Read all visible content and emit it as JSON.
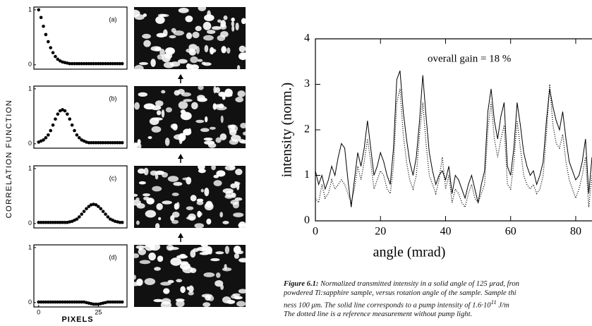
{
  "chart_data": [
    {
      "type": "scatter",
      "title": "(a)",
      "color": "#000000",
      "xlim": [
        -2,
        37
      ],
      "ylim": [
        -0.08,
        1.05
      ],
      "yticks": [
        0,
        1
      ],
      "xticks": [],
      "x": [
        0,
        1,
        2,
        3,
        4,
        5,
        6,
        7,
        8,
        9,
        10,
        11,
        12,
        13,
        14,
        15,
        16,
        17,
        18,
        19,
        20,
        21,
        22,
        23,
        24,
        25,
        26,
        27,
        28,
        29,
        30,
        31,
        32,
        33,
        34,
        35
      ],
      "values": [
        1,
        0.86,
        0.7,
        0.55,
        0.42,
        0.31,
        0.22,
        0.15,
        0.1,
        0.07,
        0.05,
        0.04,
        0.03,
        0.02,
        0.02,
        0.02,
        0.02,
        0.02,
        0.02,
        0.02,
        0.02,
        0.02,
        0.02,
        0.02,
        0.02,
        0.02,
        0.02,
        0.02,
        0.02,
        0.02,
        0.02,
        0.02,
        0.02,
        0.02,
        0.02,
        0.02
      ]
    },
    {
      "type": "scatter",
      "title": "(b)",
      "color": "#000000",
      "xlim": [
        -2,
        37
      ],
      "ylim": [
        -0.08,
        1.05
      ],
      "yticks": [
        0,
        1
      ],
      "xticks": [],
      "x": [
        0,
        1,
        2,
        3,
        4,
        5,
        6,
        7,
        8,
        9,
        10,
        11,
        12,
        13,
        14,
        15,
        16,
        17,
        18,
        19,
        20,
        21,
        22,
        23,
        24,
        25,
        26,
        27,
        28,
        29,
        30,
        31,
        32,
        33,
        34,
        35
      ],
      "values": [
        0.03,
        0.05,
        0.07,
        0.11,
        0.16,
        0.24,
        0.34,
        0.45,
        0.54,
        0.6,
        0.62,
        0.6,
        0.54,
        0.45,
        0.34,
        0.24,
        0.16,
        0.11,
        0.07,
        0.05,
        0.03,
        0.02,
        0.02,
        0.02,
        0.02,
        0.02,
        0.02,
        0.02,
        0.02,
        0.02,
        0.02,
        0.02,
        0.02,
        0.02,
        0.02,
        0.02
      ]
    },
    {
      "type": "scatter",
      "title": "(c)",
      "color": "#000000",
      "xlim": [
        -2,
        37
      ],
      "ylim": [
        -0.08,
        1.05
      ],
      "yticks": [
        0,
        1
      ],
      "xticks": [],
      "x": [
        0,
        1,
        2,
        3,
        4,
        5,
        6,
        7,
        8,
        9,
        10,
        11,
        12,
        13,
        14,
        15,
        16,
        17,
        18,
        19,
        20,
        21,
        22,
        23,
        24,
        25,
        26,
        27,
        28,
        29,
        30,
        31,
        32,
        33,
        34,
        35
      ],
      "values": [
        0.02,
        0.02,
        0.02,
        0.02,
        0.02,
        0.02,
        0.02,
        0.02,
        0.02,
        0.02,
        0.02,
        0.02,
        0.02,
        0.03,
        0.04,
        0.06,
        0.08,
        0.12,
        0.17,
        0.22,
        0.27,
        0.31,
        0.34,
        0.35,
        0.34,
        0.31,
        0.27,
        0.22,
        0.17,
        0.12,
        0.08,
        0.06,
        0.04,
        0.03,
        0.02,
        0.02
      ]
    },
    {
      "type": "scatter",
      "title": "(d)",
      "color": "#000000",
      "xlim": [
        -2,
        37
      ],
      "ylim": [
        -0.08,
        1.05
      ],
      "yticks": [
        0,
        1
      ],
      "xticks": [
        0,
        25
      ],
      "x": [
        0,
        1,
        2,
        3,
        4,
        5,
        6,
        7,
        8,
        9,
        10,
        11,
        12,
        13,
        14,
        15,
        16,
        17,
        18,
        19,
        20,
        21,
        22,
        23,
        24,
        25,
        26,
        27,
        28,
        29,
        30,
        31,
        32,
        33,
        34,
        35
      ],
      "values": [
        0.01,
        0.01,
        0.01,
        0.01,
        0.01,
        0.01,
        0.01,
        0.01,
        0.01,
        0.01,
        0.01,
        0.01,
        0.01,
        0.01,
        0.01,
        0.01,
        0.01,
        0.01,
        0.01,
        0.01,
        0,
        -0.01,
        -0.02,
        -0.03,
        -0.03,
        -0.03,
        -0.02,
        -0.01,
        0,
        0.01,
        0.01,
        0.01,
        0.01,
        0.01,
        0.01,
        0.01
      ]
    },
    {
      "type": "line",
      "xlabel": "angle (mrad)",
      "ylabel": "intensity (norm.)",
      "annotation": "overall gain = 18 %",
      "xlim": [
        0,
        85
      ],
      "ylim": [
        0,
        4
      ],
      "xticks": [
        0,
        20,
        40,
        60,
        80
      ],
      "yticks": [
        0,
        1,
        2,
        3,
        4
      ],
      "x": [
        0,
        1,
        2,
        3,
        4,
        5,
        6,
        7,
        8,
        9,
        10,
        11,
        12,
        13,
        14,
        15,
        16,
        17,
        18,
        19,
        20,
        21,
        22,
        23,
        24,
        25,
        26,
        27,
        28,
        29,
        30,
        31,
        32,
        33,
        34,
        35,
        36,
        37,
        38,
        39,
        40,
        41,
        42,
        43,
        44,
        45,
        46,
        47,
        48,
        49,
        50,
        51,
        52,
        53,
        54,
        55,
        56,
        57,
        58,
        59,
        60,
        61,
        62,
        63,
        64,
        65,
        66,
        67,
        68,
        69,
        70,
        71,
        72,
        73,
        74,
        75,
        76,
        77,
        78,
        79,
        80,
        81,
        82,
        83,
        84,
        85
      ],
      "series": [
        {
          "color": "#000000",
          "style": "solid",
          "values": [
            1.1,
            0.8,
            1.0,
            0.7,
            0.9,
            1.2,
            1.0,
            1.4,
            1.7,
            1.6,
            0.9,
            0.3,
            0.9,
            1.5,
            1.2,
            1.6,
            2.2,
            1.6,
            1.0,
            1.2,
            1.5,
            1.3,
            1.0,
            0.8,
            1.6,
            3.1,
            3.3,
            2.4,
            1.8,
            1.3,
            1.0,
            1.4,
            2.2,
            3.2,
            2.3,
            1.5,
            1.1,
            0.8,
            1.0,
            1.1,
            0.9,
            1.2,
            0.6,
            1.0,
            0.9,
            0.7,
            0.5,
            0.8,
            1.0,
            0.7,
            0.4,
            0.8,
            1.1,
            2.4,
            2.9,
            2.2,
            1.8,
            2.3,
            2.6,
            1.2,
            1.0,
            1.6,
            2.6,
            2.1,
            1.5,
            1.2,
            1.0,
            1.1,
            0.8,
            1.0,
            1.3,
            2.2,
            2.9,
            2.5,
            2.2,
            2.0,
            2.4,
            1.8,
            1.3,
            1.1,
            0.9,
            1.0,
            1.3,
            1.8,
            0.6,
            1.4
          ]
        },
        {
          "color": "#000000",
          "style": "dotted",
          "values": [
            0.5,
            0.4,
            0.8,
            0.5,
            0.6,
            0.9,
            0.7,
            0.8,
            0.9,
            0.8,
            0.6,
            0.4,
            0.7,
            1.2,
            0.9,
            1.3,
            1.8,
            1.3,
            0.7,
            0.9,
            1.1,
            1.0,
            0.7,
            0.6,
            1.2,
            2.6,
            2.9,
            1.9,
            1.3,
            0.9,
            0.7,
            1.0,
            1.9,
            2.6,
            1.7,
            1.0,
            0.8,
            0.6,
            0.9,
            1.4,
            0.7,
            1.0,
            0.4,
            0.7,
            0.6,
            0.4,
            0.3,
            0.6,
            0.8,
            0.5,
            0.4,
            0.6,
            0.8,
            2.0,
            2.6,
            1.8,
            1.4,
            1.8,
            2.1,
            0.8,
            0.7,
            1.3,
            2.2,
            1.6,
            1.0,
            0.8,
            0.7,
            0.8,
            0.6,
            0.7,
            1.0,
            1.9,
            3.0,
            2.1,
            1.7,
            1.6,
            1.9,
            1.3,
            0.9,
            0.7,
            0.5,
            0.7,
            1.0,
            1.4,
            0.3,
            1.0
          ]
        }
      ]
    }
  ],
  "figure_labels": {
    "y_label": "CORRELATION FUNCTION",
    "x_label": "PIXELS"
  },
  "caption": {
    "figure": "Figure 6.1:",
    "lines": [
      [
        "Normalized transmitted intensity in a solid angle of 125 μrad, fron"
      ],
      [
        "powdered Ti:sapphire sample, versus rotation angle of the sample.  Sample thi"
      ],
      [
        "ness 100 μm.  The solid line corresponds to a pump intensity of 1.6·10",
        "11",
        " J/m"
      ],
      [
        "The dotted line is a reference measurement without pump light."
      ]
    ]
  }
}
